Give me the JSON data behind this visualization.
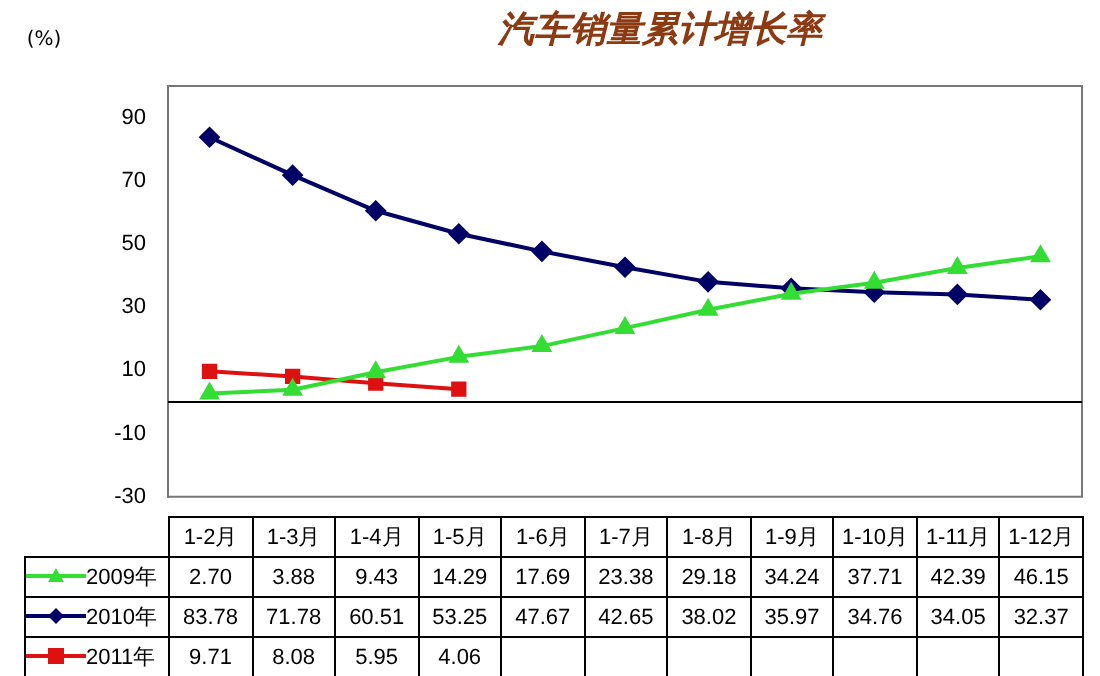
{
  "chart_data": {
    "type": "line",
    "title": "汽车销量累计增长率",
    "ylabel": "(%)",
    "categories": [
      "1-2月",
      "1-3月",
      "1-4月",
      "1-5月",
      "1-6月",
      "1-7月",
      "1-8月",
      "1-9月",
      "1-10月",
      "1-11月",
      "1-12月"
    ],
    "series": [
      {
        "name": "2009年",
        "color": "#33dd33",
        "marker": "triangle",
        "values": [
          2.7,
          3.88,
          9.43,
          14.29,
          17.69,
          23.38,
          29.18,
          34.24,
          37.71,
          42.39,
          46.15
        ],
        "value_labels": [
          "2.70",
          "3.88",
          "9.43",
          "14.29",
          "17.69",
          "23.38",
          "29.18",
          "34.24",
          "37.71",
          "42.39",
          "46.15"
        ]
      },
      {
        "name": "2010年",
        "color": "#000066",
        "marker": "diamond",
        "values": [
          83.78,
          71.78,
          60.51,
          53.25,
          47.67,
          42.65,
          38.02,
          35.97,
          34.76,
          34.05,
          32.37
        ],
        "value_labels": [
          "83.78",
          "71.78",
          "60.51",
          "53.25",
          "47.67",
          "42.65",
          "38.02",
          "35.97",
          "34.76",
          "34.05",
          "32.37"
        ]
      },
      {
        "name": "2011年",
        "color": "#dd1111",
        "marker": "square",
        "values": [
          9.71,
          8.08,
          5.95,
          4.06,
          null,
          null,
          null,
          null,
          null,
          null,
          null
        ],
        "value_labels": [
          "9.71",
          "8.08",
          "5.95",
          "4.06",
          null,
          null,
          null,
          null,
          null,
          null,
          null
        ]
      }
    ],
    "ylim": [
      -30,
      100
    ],
    "yticks": [
      -30,
      -10,
      10,
      30,
      50,
      70,
      90
    ],
    "grid": false,
    "legend": "bottom",
    "line_style": "solid"
  }
}
